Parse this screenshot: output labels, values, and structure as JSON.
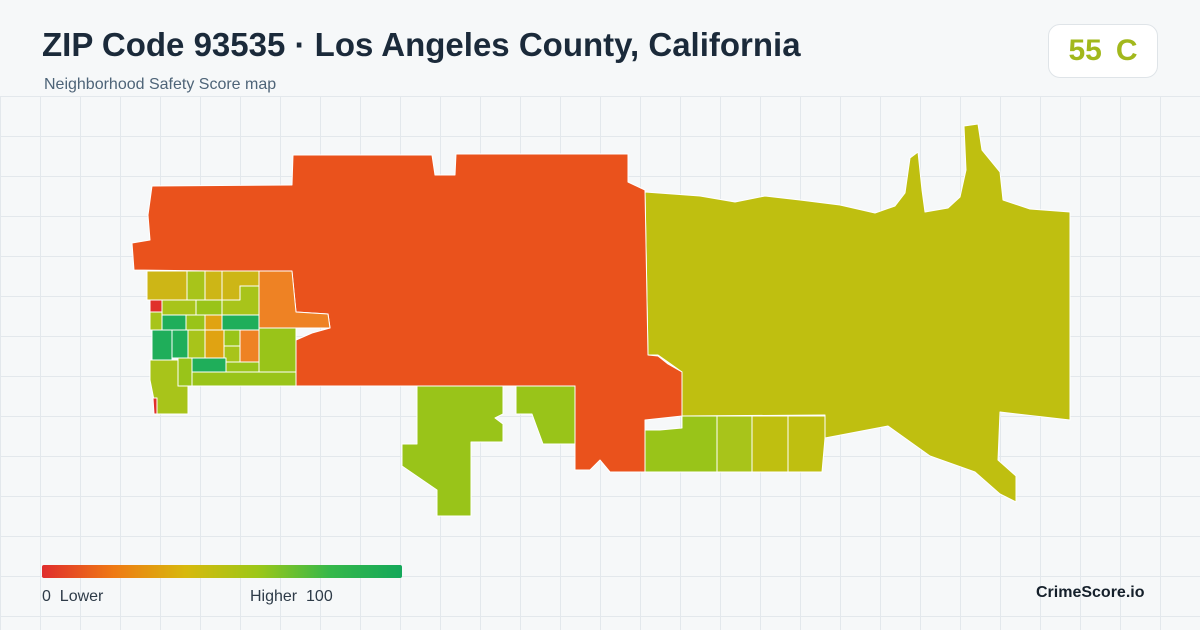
{
  "header": {
    "title": "ZIP Code 93535 · Los Angeles County, California",
    "subtitle": "Neighborhood Safety Score map"
  },
  "score": {
    "value": "55",
    "grade": "C",
    "color": "#a2b81c"
  },
  "legend": {
    "low_min": "0",
    "low_label": "Lower",
    "high_label": "Higher",
    "high_max": "100",
    "gradient_colors": [
      "#e02d2d",
      "#ef7a14",
      "#d7b90d",
      "#9cc718",
      "#35b84a",
      "#14a85a"
    ]
  },
  "brand": "CrimeScore.io",
  "map": {
    "colors": {
      "red": "#ea521c",
      "olive": "#bfbf10",
      "yellowgreen": "#99c419",
      "green": "#1fae5a",
      "lime": "#a8c41a",
      "amber": "#e0a312",
      "gold": "#cdb616",
      "orange": "#ee8224",
      "darkred": "#e0302a"
    }
  }
}
